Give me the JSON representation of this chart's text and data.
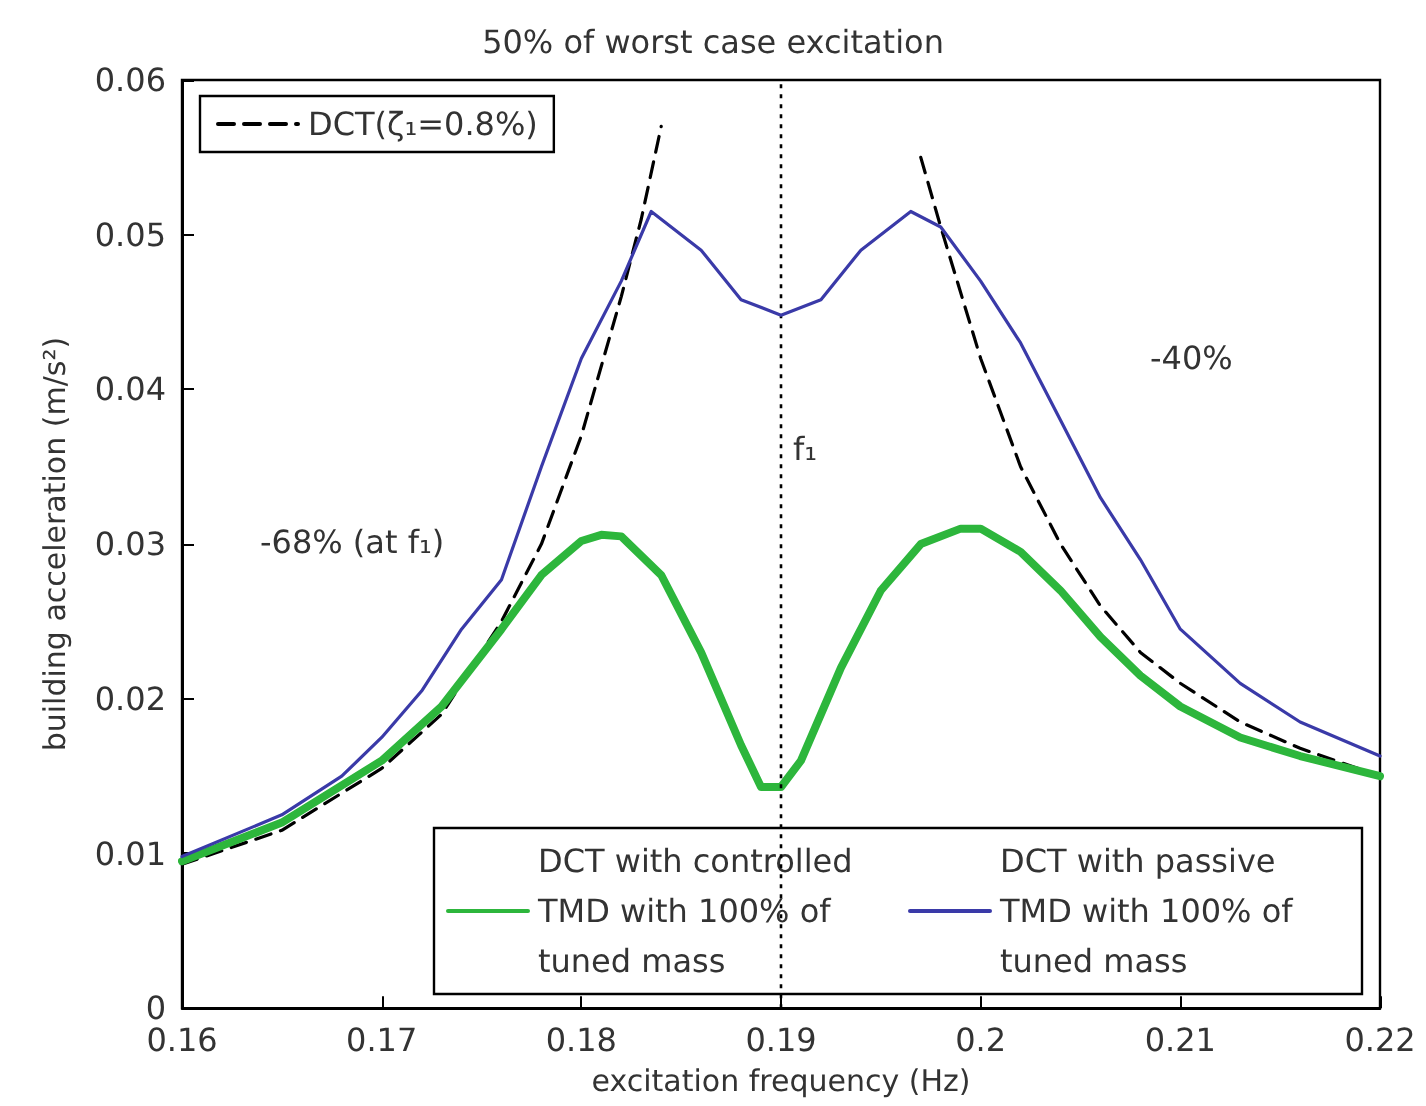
{
  "chart_data": {
    "type": "line",
    "title": "50% of worst case excitation",
    "xlabel": "excitation frequency (Hz)",
    "ylabel": "building acceleration (m/s²)",
    "xlim": [
      0.16,
      0.22
    ],
    "xticks": [
      0.16,
      0.17,
      0.18,
      0.19,
      0.2,
      0.21,
      0.22
    ],
    "ylim": [
      0,
      0.06
    ],
    "yticks": [
      0,
      0.01,
      0.02,
      0.03,
      0.04,
      0.05,
      0.06
    ],
    "grid": false,
    "legend": "top left",
    "marker": "none",
    "series": [
      {
        "name": "DCT(ζ₁=0.8%)",
        "color": "#000000",
        "line_style": "dashed",
        "x": [
          0.16,
          0.165,
          0.17,
          0.173,
          0.176,
          0.178,
          0.18,
          0.182,
          0.183,
          0.184,
          0.19,
          0.197,
          0.198,
          0.2,
          0.202,
          0.204,
          0.206,
          0.208,
          0.21,
          0.213,
          0.216,
          0.22
        ],
        "values": [
          0.0093,
          0.0115,
          0.0155,
          0.019,
          0.025,
          0.03,
          0.037,
          0.046,
          0.051,
          0.057,
          null,
          0.055,
          0.0505,
          0.042,
          0.035,
          0.03,
          0.026,
          0.023,
          0.021,
          0.0185,
          0.0168,
          0.015
        ]
      },
      {
        "name": "DCT with controlled TMD with 100% of tuned mass",
        "color": "#2db63c",
        "line_style": "solid",
        "x": [
          0.16,
          0.165,
          0.17,
          0.173,
          0.176,
          0.178,
          0.18,
          0.181,
          0.182,
          0.184,
          0.186,
          0.188,
          0.189,
          0.19,
          0.191,
          0.193,
          0.195,
          0.197,
          0.199,
          0.2,
          0.202,
          0.204,
          0.206,
          0.208,
          0.21,
          0.213,
          0.216,
          0.22
        ],
        "values": [
          0.0095,
          0.012,
          0.016,
          0.0195,
          0.0245,
          0.028,
          0.0302,
          0.0306,
          0.0305,
          0.028,
          0.023,
          0.017,
          0.0143,
          0.0143,
          0.016,
          0.022,
          0.027,
          0.03,
          0.031,
          0.031,
          0.0295,
          0.027,
          0.024,
          0.0215,
          0.0195,
          0.0175,
          0.0163,
          0.015
        ]
      },
      {
        "name": "DCT with passive TMD with 100% of tuned mass",
        "color": "#3a3aa8",
        "line_style": "solid",
        "x": [
          0.16,
          0.165,
          0.168,
          0.17,
          0.172,
          0.174,
          0.176,
          0.178,
          0.18,
          0.182,
          0.1835,
          0.186,
          0.188,
          0.19,
          0.192,
          0.194,
          0.1965,
          0.198,
          0.2,
          0.202,
          0.204,
          0.206,
          0.208,
          0.21,
          0.213,
          0.216,
          0.22
        ],
        "values": [
          0.0098,
          0.0125,
          0.015,
          0.0175,
          0.0205,
          0.0245,
          0.0277,
          0.035,
          0.042,
          0.047,
          0.0515,
          0.049,
          0.0458,
          0.0448,
          0.0458,
          0.049,
          0.0515,
          0.0505,
          0.047,
          0.043,
          0.038,
          0.033,
          0.029,
          0.0245,
          0.021,
          0.0185,
          0.0163
        ]
      }
    ],
    "ref_lines": [
      {
        "axis": "x",
        "value": 0.19,
        "label": "f₁",
        "line_style": "dotted",
        "color": "#000000"
      }
    ],
    "annotations": [
      "-68% (at f₁)",
      "-40%"
    ]
  }
}
